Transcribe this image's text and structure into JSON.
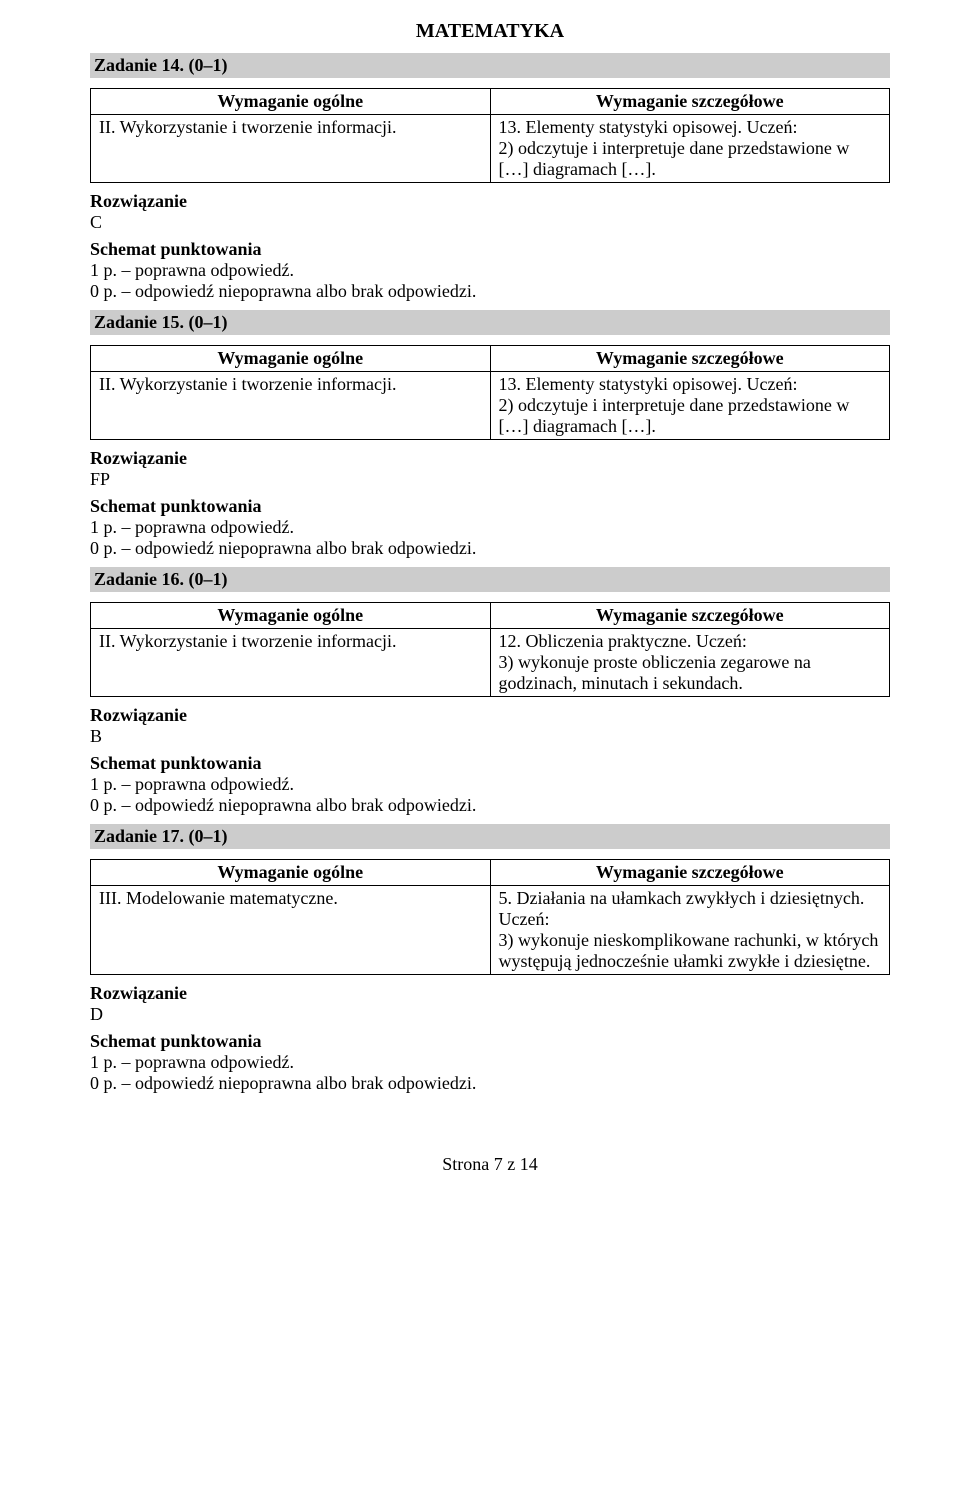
{
  "header": "MATEMATYKA",
  "labels": {
    "wymaganie_ogolne": "Wymaganie ogólne",
    "wymaganie_szczegolowe": "Wymaganie szczegółowe",
    "rozwiazanie": "Rozwiązanie",
    "schemat": "Schemat punktowania"
  },
  "scoring": {
    "line1": "1 p. – poprawna odpowiedź.",
    "line2": "0 p. – odpowiedź niepoprawna albo brak odpowiedzi."
  },
  "tasks": [
    {
      "title": "Zadanie 14. (0–1)",
      "ogolne": "II. Wykorzystanie i tworzenie informacji.",
      "szczegolowe": "13. Elementy statystyki opisowej. Uczeń:\n2) odczytuje i interpretuje dane przedstawione w […] diagramach […].",
      "rozwiazanie": "C"
    },
    {
      "title": "Zadanie 15. (0–1)",
      "ogolne": "II. Wykorzystanie i tworzenie informacji.",
      "szczegolowe": "13. Elementy statystyki opisowej. Uczeń:\n2) odczytuje i interpretuje dane przedstawione w […] diagramach […].",
      "rozwiazanie": "FP"
    },
    {
      "title": "Zadanie 16. (0–1)",
      "ogolne": "II. Wykorzystanie i tworzenie informacji.",
      "szczegolowe": "12. Obliczenia praktyczne. Uczeń:\n3) wykonuje proste obliczenia zegarowe na godzinach, minutach i sekundach.",
      "rozwiazanie": "B"
    },
    {
      "title": "Zadanie 17. (0–1)",
      "ogolne": "III. Modelowanie matematyczne.",
      "szczegolowe": "5. Działania na ułamkach zwykłych i dziesiętnych. Uczeń:\n3) wykonuje nieskomplikowane rachunki, w których występują jednocześnie ułamki zwykłe i dziesiętne.",
      "rozwiazanie": "D"
    }
  ],
  "footer": "Strona 7 z 14"
}
